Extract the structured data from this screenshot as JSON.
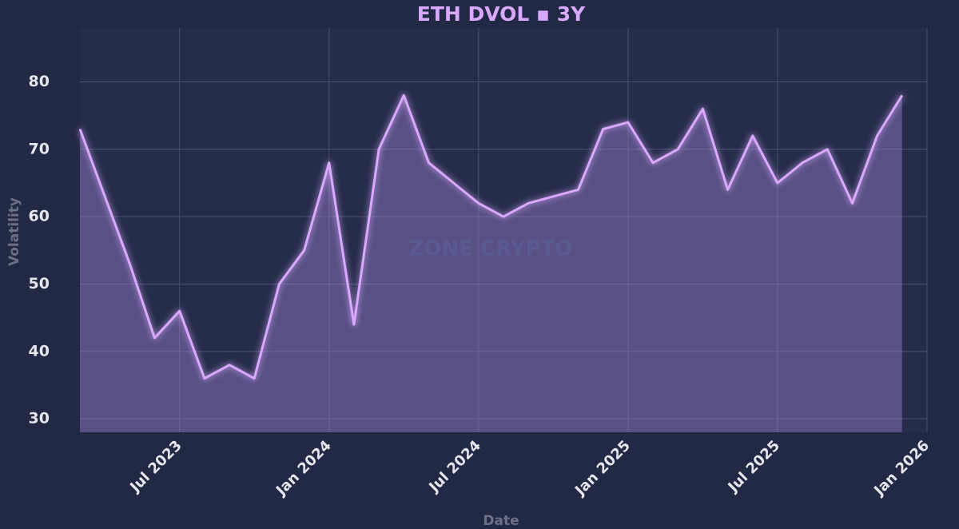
{
  "chart_data": {
    "type": "line",
    "title": "ETH DVOL ▪ 3Y",
    "watermark": "ZONE CRYPTO",
    "x_label": "Date",
    "y_label": "Volatility",
    "x": [
      "2023-03",
      "2023-04",
      "2023-05",
      "2023-06",
      "2023-07",
      "2023-08",
      "2023-09",
      "2023-10",
      "2023-11",
      "2023-12",
      "2024-01",
      "2024-02",
      "2024-03",
      "2024-04",
      "2024-05",
      "2024-06",
      "2024-07",
      "2024-08",
      "2024-09",
      "2024-10",
      "2024-11",
      "2024-12",
      "2025-01",
      "2025-02",
      "2025-03",
      "2025-04",
      "2025-05",
      "2025-06",
      "2025-07",
      "2025-08",
      "2025-09",
      "2025-10",
      "2025-11",
      "2025-12"
    ],
    "values": [
      73,
      63,
      53,
      42,
      46,
      36,
      38,
      36,
      50,
      55,
      68,
      44,
      70,
      78,
      68,
      65,
      62,
      60,
      62,
      63,
      64,
      73,
      74,
      68,
      70,
      76,
      64,
      72,
      65,
      68,
      70,
      62,
      72,
      78
    ],
    "color": "#d9a8ff",
    "xlim": [
      "2023-03",
      "2026-01"
    ],
    "xticks": [
      {
        "value": "2023-07",
        "label": "Jul 2023"
      },
      {
        "value": "2024-01",
        "label": "Jan 2024"
      },
      {
        "value": "2024-07",
        "label": "Jul 2024"
      },
      {
        "value": "2025-01",
        "label": "Jan 2025"
      },
      {
        "value": "2025-07",
        "label": "Jul 2025"
      },
      {
        "value": "2026-01",
        "label": "Jan 2026"
      }
    ],
    "ylim": [
      28,
      88
    ],
    "yticks": [
      30,
      40,
      50,
      60,
      70,
      80
    ],
    "grid": true
  }
}
